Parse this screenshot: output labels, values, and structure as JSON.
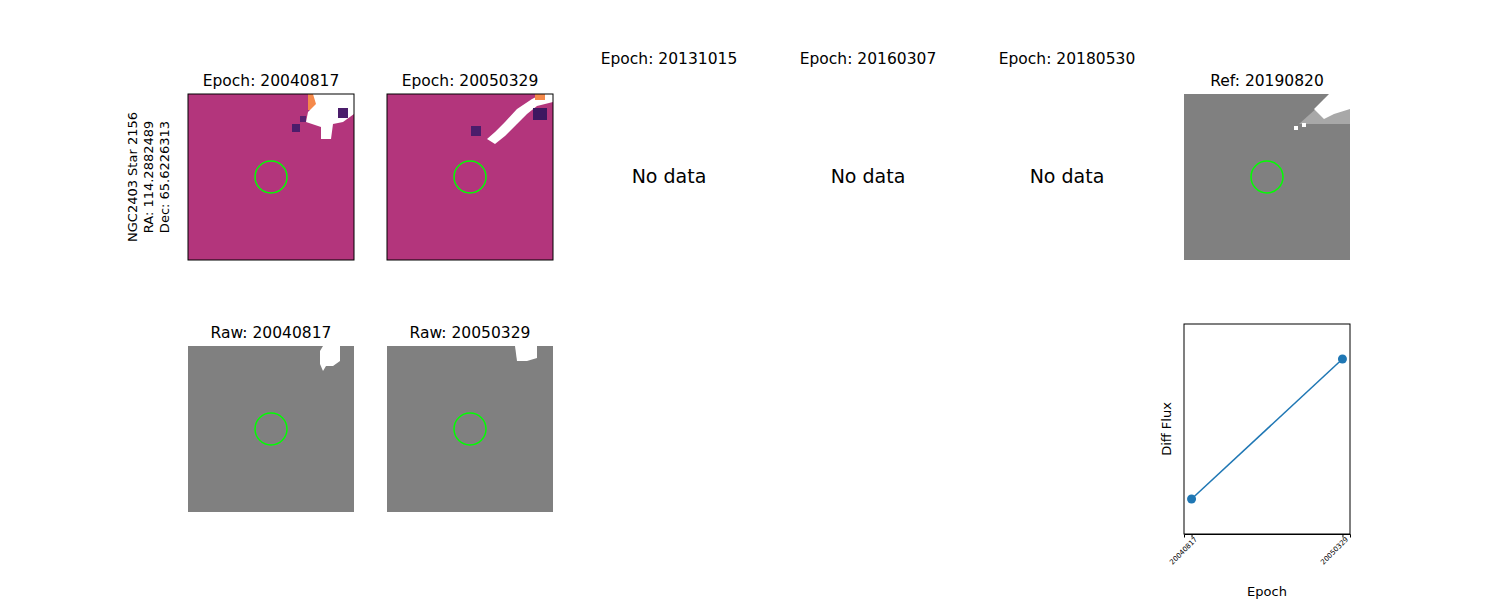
{
  "chart_data": [
    {
      "type": "image",
      "title": "Epoch: 20040817",
      "color": "#b3357c",
      "ylabel": [
        "NGC2403 Star 2156",
        "RA: 114.2882489",
        "Dec: 65.6226313"
      ]
    },
    {
      "type": "image",
      "title": "Epoch: 20050329",
      "color": "#b3357c"
    },
    {
      "type": "empty",
      "title": "Epoch: 20131015",
      "annotations": [
        "No data"
      ]
    },
    {
      "type": "empty",
      "title": "Epoch: 20160307",
      "annotations": [
        "No data"
      ]
    },
    {
      "type": "empty",
      "title": "Epoch: 20180530",
      "annotations": [
        "No data"
      ]
    },
    {
      "type": "image",
      "title": "Ref: 20190820",
      "color": "#808080"
    },
    {
      "type": "image",
      "title": "Raw: 20040817",
      "color": "#808080"
    },
    {
      "type": "image",
      "title": "Raw: 20050329",
      "color": "#808080"
    },
    {
      "type": "line",
      "xlabel": "Epoch",
      "ylabel": "Diff Flux",
      "categories": [
        "20040817",
        "20050329"
      ],
      "values": [
        1,
        5
      ],
      "ylim": [
        0,
        6
      ],
      "tick_labels": "x",
      "marker": "circle",
      "color": "#1f77b4"
    }
  ]
}
